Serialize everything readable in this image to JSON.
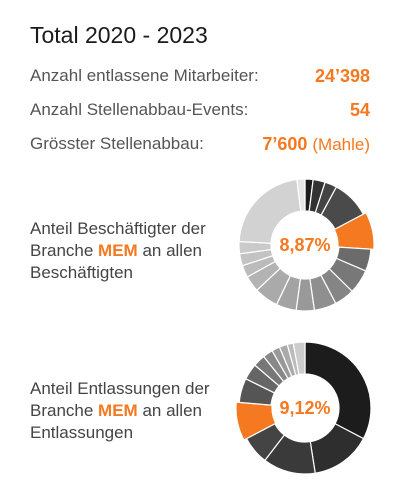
{
  "header": {
    "title": "Total 2020 - 2023"
  },
  "stats": [
    {
      "label": "Anzahl entlassene Mitarbeiter:",
      "value": "24’398",
      "note": ""
    },
    {
      "label": "Anzahl Stellenabbau-Events:",
      "value": "54",
      "note": ""
    },
    {
      "label": "Grösster Stellenabbau:",
      "value": "7’600",
      "note": "(Mahle)"
    }
  ],
  "chart_data": [
    {
      "type": "pie",
      "title": "",
      "center_label": "8,87%",
      "description": {
        "line1": "Anteil Beschäftigter der",
        "pre": "Branche ",
        "highlight": "MEM",
        "post": " an allen",
        "line3": "Beschäftigten"
      },
      "values": [
        2.0,
        3.0,
        3.0,
        9.5,
        8.87,
        5.5,
        6.0,
        5.0,
        5.5,
        4.5,
        5.0,
        6.0,
        4.0,
        3.0,
        3.0,
        3.0,
        22.5,
        2.0
      ],
      "colors": [
        "#1c1c1c",
        "#333333",
        "#444444",
        "#4a4a4a",
        "#f47920",
        "#6b6b6b",
        "#787878",
        "#858585",
        "#8f8f8f",
        "#999999",
        "#a3a3a3",
        "#aaaaaa",
        "#b3b3b3",
        "#bbbbbb",
        "#c3c3c3",
        "#cacaca",
        "#d2d2d2",
        "#e6e6e6"
      ],
      "highlight_index": 4
    },
    {
      "type": "pie",
      "title": "",
      "center_label": "9,12%",
      "description": {
        "line1": "Anteil Entlassungen der",
        "pre": "Branche ",
        "highlight": "MEM",
        "post": " an allen",
        "line3": "Entlassungen"
      },
      "values": [
        33.0,
        15.0,
        13.0,
        7.0,
        9.12,
        6.0,
        4.0,
        3.0,
        2.5,
        2.0,
        2.0,
        1.5,
        2.88
      ],
      "colors": [
        "#1c1c1c",
        "#2e2e2e",
        "#3a3a3a",
        "#444444",
        "#f47920",
        "#555555",
        "#666666",
        "#777777",
        "#888888",
        "#999999",
        "#aaaaaa",
        "#bbbbbb",
        "#cccccc"
      ],
      "highlight_index": 4
    }
  ]
}
